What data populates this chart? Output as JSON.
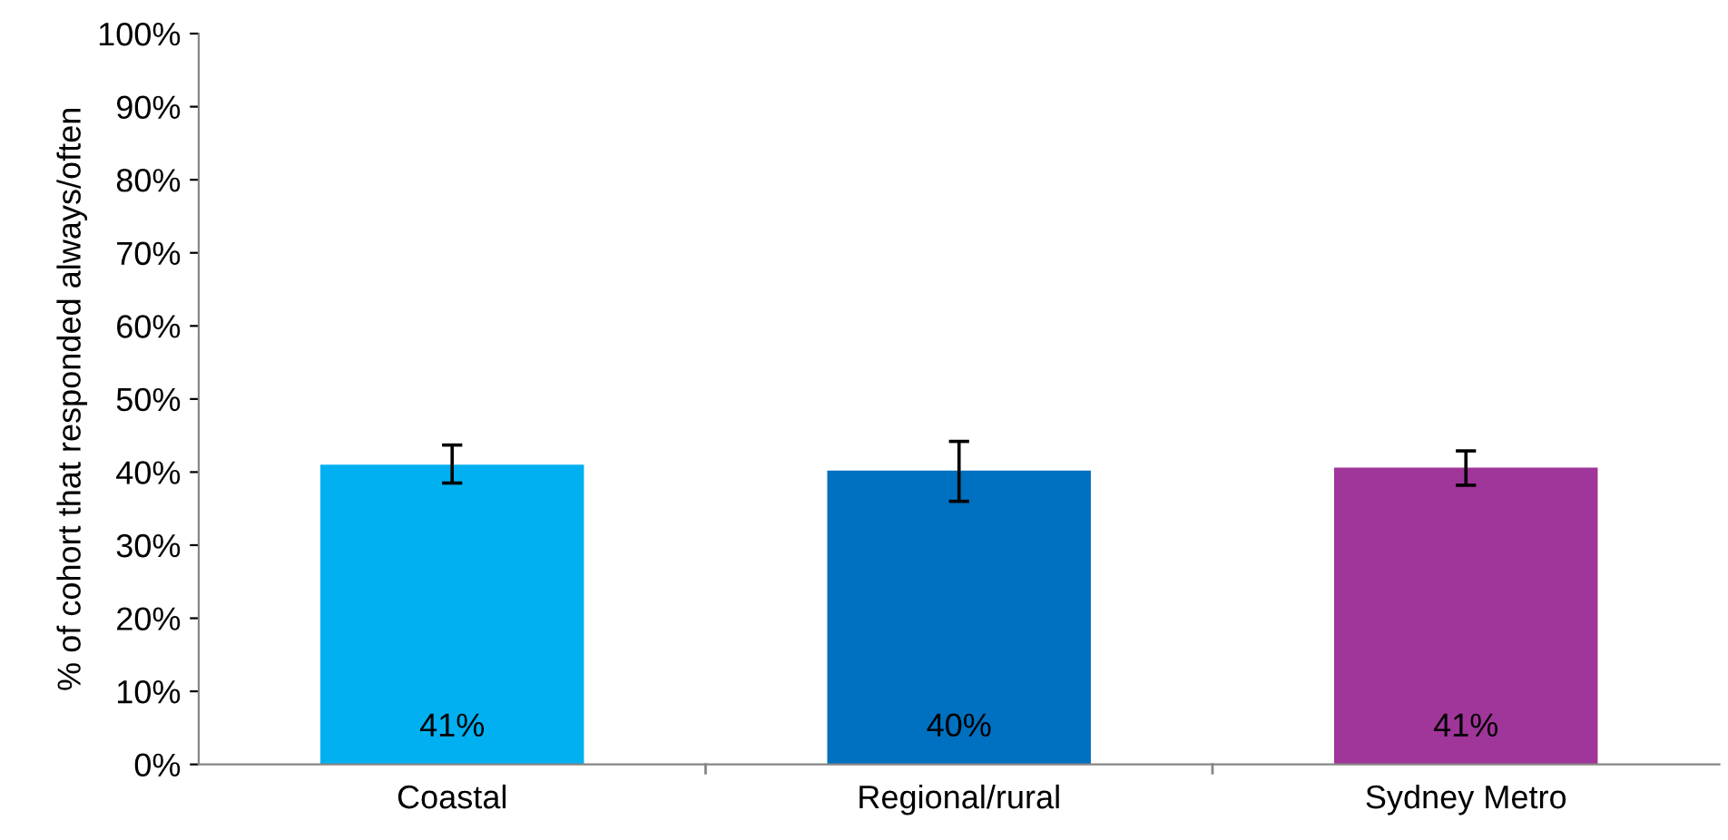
{
  "chart_data": {
    "type": "bar",
    "ylabel": "% of cohort that responded always/often",
    "categories": [
      "Coastal",
      "Regional/rural",
      "Sydney Metro"
    ],
    "values": [
      41.0,
      40.2,
      40.6
    ],
    "colors": [
      "#00b0f0",
      "#0070c0",
      "#a0359a"
    ],
    "errors": [
      [
        38.5,
        43.7
      ],
      [
        36.0,
        44.2
      ],
      [
        38.2,
        42.9
      ]
    ],
    "value_labels": [
      "41%",
      "40%",
      "41%"
    ],
    "ylim": [
      0,
      100
    ],
    "yticks": [
      {
        "value": 0,
        "label": "0%"
      },
      {
        "value": 10,
        "label": "10%"
      },
      {
        "value": 20,
        "label": "20%"
      },
      {
        "value": 30,
        "label": "30%"
      },
      {
        "value": 40,
        "label": "40%"
      },
      {
        "value": 50,
        "label": "50%"
      },
      {
        "value": 60,
        "label": "60%"
      },
      {
        "value": 70,
        "label": "70%"
      },
      {
        "value": 80,
        "label": "80%"
      },
      {
        "value": 90,
        "label": "90%"
      },
      {
        "value": 100,
        "label": "100%"
      }
    ],
    "grid": false,
    "legend": false
  }
}
